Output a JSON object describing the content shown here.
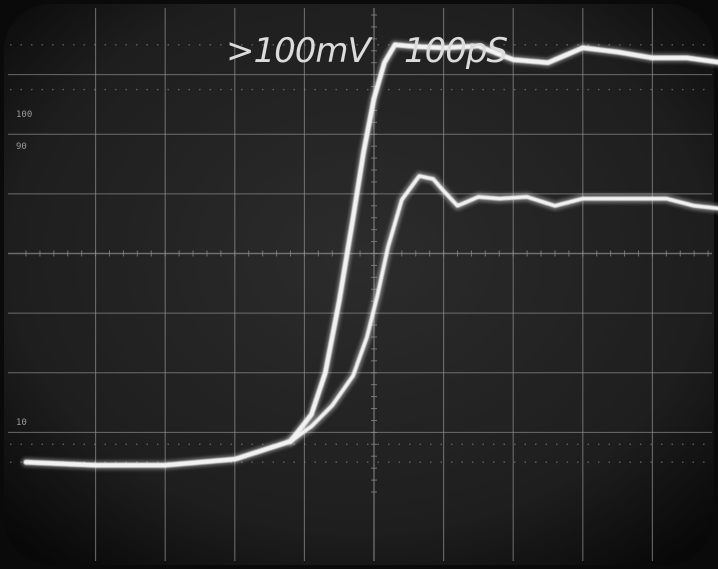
{
  "screen": {
    "vertical_scale": ">100mV",
    "time_scale": "100pS",
    "marker_100": "100",
    "marker_90": "90",
    "marker_10": "10",
    "colors": {
      "screen": "#232323",
      "bezel": "#0a0a0a",
      "graticule": "#8c8c8c",
      "trace": "#f2f2f2"
    }
  },
  "chart_data": {
    "type": "line",
    "title": "",
    "xlabel": "",
    "ylabel": "",
    "xlim": [
      0,
      10
    ],
    "ylim": [
      0,
      8
    ],
    "grid": true,
    "series": [
      {
        "name": "",
        "x": [
          0,
          1,
          2,
          3,
          3.8,
          4.1,
          4.3,
          4.5,
          4.7,
          4.85,
          5.0,
          5.15,
          5.3,
          5.6,
          6.0,
          6.5,
          7.0,
          7.5,
          8.0,
          8.5,
          9.0,
          9.5,
          10.0
        ],
        "y": [
          0.5,
          0.45,
          0.45,
          0.55,
          0.85,
          1.3,
          2.0,
          3.2,
          4.6,
          5.7,
          6.6,
          7.2,
          7.5,
          7.47,
          7.45,
          7.48,
          7.25,
          7.2,
          7.45,
          7.38,
          7.28,
          7.28,
          7.2
        ]
      },
      {
        "name": "",
        "x": [
          3.8,
          4.1,
          4.4,
          4.7,
          4.9,
          5.05,
          5.2,
          5.4,
          5.65,
          5.85,
          6.0,
          6.2,
          6.5,
          6.8,
          7.2,
          7.6,
          8.0,
          8.4,
          8.8,
          9.2,
          9.6,
          10.0
        ],
        "y": [
          0.85,
          1.1,
          1.45,
          1.95,
          2.6,
          3.3,
          4.1,
          4.9,
          5.3,
          5.25,
          5.05,
          4.8,
          4.95,
          4.92,
          4.95,
          4.8,
          4.92,
          4.92,
          4.92,
          4.92,
          4.8,
          4.75
        ]
      }
    ]
  }
}
